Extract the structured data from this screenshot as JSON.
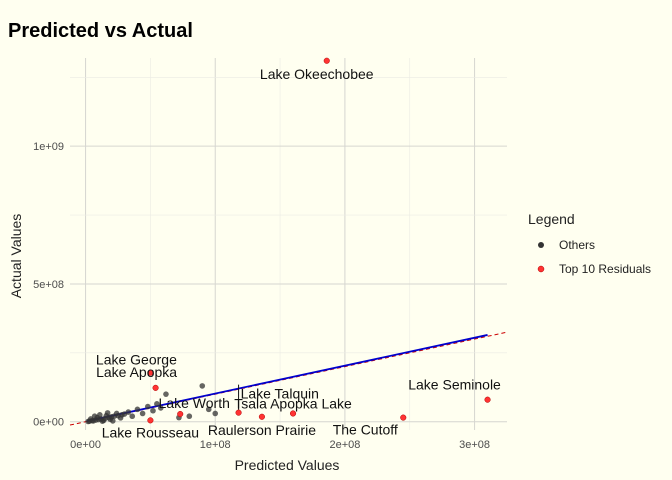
{
  "chart_data": {
    "type": "scatter",
    "title": "Predicted vs Actual",
    "xlabel": "Predicted Values",
    "ylabel": "Actual Values",
    "xlim": [
      -12000000,
      325000000
    ],
    "ylim": [
      -30000000,
      1320000000
    ],
    "x_ticks": [
      {
        "value": 0,
        "label": "0e+00"
      },
      {
        "value": 100000000,
        "label": "1e+08"
      },
      {
        "value": 200000000,
        "label": "2e+08"
      },
      {
        "value": 300000000,
        "label": "3e+08"
      }
    ],
    "y_ticks": [
      {
        "value": 0,
        "label": "0e+00"
      },
      {
        "value": 500000000,
        "label": "5e+08"
      },
      {
        "value": 1000000000,
        "label": "1e+09"
      }
    ],
    "grid": true,
    "legend": {
      "title": "Legend",
      "position": "right",
      "entries": [
        {
          "label": "Others",
          "color": "#333333"
        },
        {
          "label": "Top 10 Residuals",
          "color": "#ff3333"
        }
      ]
    },
    "reference_line": {
      "slope": 1,
      "intercept": 0,
      "color": "#cc0000",
      "style": "dashed"
    },
    "fit_line": {
      "x": [
        1000000,
        310000000
      ],
      "y": [
        2000000,
        315000000
      ],
      "color": "#0000cc"
    },
    "series": [
      {
        "name": "Others",
        "color": "#333333",
        "points": [
          [
            3000000,
            2000000
          ],
          [
            5000000,
            4000000
          ],
          [
            8000000,
            6000000
          ],
          [
            10000000,
            8000000
          ],
          [
            12000000,
            10000000
          ],
          [
            15000000,
            12000000
          ],
          [
            18000000,
            15000000
          ],
          [
            20000000,
            18000000
          ],
          [
            22000000,
            20000000
          ],
          [
            25000000,
            22000000
          ],
          [
            28000000,
            25000000
          ],
          [
            30000000,
            28000000
          ],
          [
            4000000,
            10000000
          ],
          [
            6000000,
            3000000
          ],
          [
            9000000,
            15000000
          ],
          [
            14000000,
            5000000
          ],
          [
            16000000,
            22000000
          ],
          [
            19000000,
            9000000
          ],
          [
            24000000,
            30000000
          ],
          [
            27000000,
            14000000
          ],
          [
            33000000,
            35000000
          ],
          [
            36000000,
            20000000
          ],
          [
            40000000,
            45000000
          ],
          [
            44000000,
            30000000
          ],
          [
            48000000,
            55000000
          ],
          [
            52000000,
            40000000
          ],
          [
            55000000,
            65000000
          ],
          [
            58000000,
            50000000
          ],
          [
            62000000,
            100000000
          ],
          [
            90000000,
            130000000
          ],
          [
            72000000,
            15000000
          ],
          [
            80000000,
            20000000
          ],
          [
            95000000,
            45000000
          ],
          [
            100000000,
            30000000
          ],
          [
            2000000,
            1000000
          ],
          [
            7000000,
            20000000
          ],
          [
            11000000,
            25000000
          ],
          [
            13000000,
            2000000
          ],
          [
            17000000,
            32000000
          ],
          [
            21000000,
            3000000
          ]
        ]
      },
      {
        "name": "Top 10 Residuals",
        "color": "#ff3333",
        "points": [
          {
            "x": 186000000,
            "y": 1310000000,
            "label": "Lake Okeechobee"
          },
          {
            "x": 50000000,
            "y": 178000000,
            "label": "Lake George"
          },
          {
            "x": 54000000,
            "y": 123000000,
            "label": "Lake Apopka"
          },
          {
            "x": 73000000,
            "y": 28000000,
            "label": "Lake Worth"
          },
          {
            "x": 118000000,
            "y": 33000000,
            "label": "Lake Talquin"
          },
          {
            "x": 50000000,
            "y": 5000000,
            "label": "Lake Rousseau"
          },
          {
            "x": 136000000,
            "y": 18000000,
            "label": "Raulerson Prairie"
          },
          {
            "x": 160000000,
            "y": 30000000,
            "label": "Tsala Apopka Lake"
          },
          {
            "x": 245000000,
            "y": 15000000,
            "label": "The Cutoff"
          },
          {
            "x": 310000000,
            "y": 80000000,
            "label": "Lake Seminole"
          }
        ]
      }
    ]
  }
}
